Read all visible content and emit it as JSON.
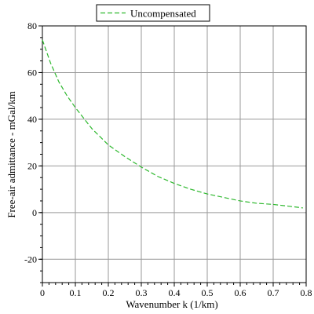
{
  "chart_data": {
    "type": "line",
    "xlabel": "Wavenumber k (1/km)",
    "ylabel": "Free-air admittance - mGal/km",
    "xlim": [
      0,
      0.8
    ],
    "ylim": [
      -30,
      80
    ],
    "x_ticks": [
      0,
      0.1,
      0.2,
      0.3,
      0.4,
      0.5,
      0.6,
      0.7,
      0.8
    ],
    "x_tick_labels": [
      "0",
      "0.1",
      "0.2",
      "0.3",
      "0.4",
      "0.5",
      "0.6",
      "0.7",
      "0.8"
    ],
    "y_ticks": [
      -20,
      0,
      20,
      40,
      60,
      80
    ],
    "y_tick_labels": [
      "-20",
      "0",
      "20",
      "40",
      "60",
      "80"
    ],
    "grid": true,
    "legend_position": "top-center",
    "series": [
      {
        "name": "Uncompensated",
        "color": "#2db82d",
        "line_style": "dashed",
        "x": [
          0,
          0.025,
          0.05,
          0.075,
          0.1,
          0.15,
          0.2,
          0.25,
          0.3,
          0.35,
          0.4,
          0.45,
          0.5,
          0.55,
          0.6,
          0.65,
          0.7,
          0.75,
          0.79
        ],
        "y": [
          74,
          64,
          56,
          50,
          45,
          36,
          29,
          24,
          19.5,
          15.5,
          12.5,
          10,
          8,
          6.5,
          5,
          4,
          3.5,
          2.7,
          2
        ]
      }
    ]
  }
}
